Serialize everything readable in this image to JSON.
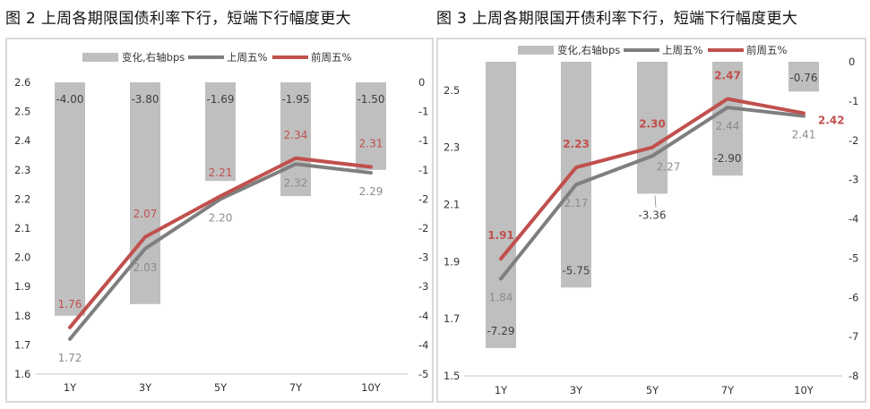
{
  "titles": [
    "图 2  上周各期限国债利率下行，短端下行幅度更大",
    "图 3  上周各期限国开债利率下行，短端下行幅度更大"
  ],
  "colors": {
    "bar": "#bfbfbf",
    "last_friday": "#7f7f7f",
    "prev_friday": "#c0504d",
    "bar_label": "#404040"
  },
  "chart_data": [
    {
      "type": "bar+line",
      "title": "图 2  上周各期限国债利率下行，短端下行幅度更大",
      "categories": [
        "1Y",
        "3Y",
        "5Y",
        "7Y",
        "10Y"
      ],
      "legend": [
        "变化,右轴bps",
        "上周五%",
        "前周五%"
      ],
      "legend_position": "top",
      "series": [
        {
          "name": "变化,右轴bps",
          "type": "bar",
          "axis": "right",
          "values": [
            -4.0,
            -3.8,
            -1.69,
            -1.95,
            -1.5
          ],
          "labels": [
            "-4.00",
            "-3.80",
            "-1.69",
            "-1.95",
            "-1.50"
          ]
        },
        {
          "name": "上周五%",
          "type": "line",
          "axis": "left",
          "values": [
            1.72,
            2.03,
            2.2,
            2.32,
            2.29
          ],
          "labels": [
            "1.72",
            "2.03",
            "2.20",
            "2.32",
            "2.29"
          ]
        },
        {
          "name": "前周五%",
          "type": "line",
          "axis": "left",
          "values": [
            1.76,
            2.07,
            2.21,
            2.34,
            2.31
          ],
          "labels": [
            "1.76",
            "2.07",
            "2.21",
            "2.34",
            "2.31"
          ]
        }
      ],
      "left_axis": {
        "range": [
          1.6,
          2.6
        ],
        "ticks": [
          1.6,
          1.7,
          1.8,
          1.9,
          2.0,
          2.1,
          2.2,
          2.3,
          2.4,
          2.5,
          2.6
        ],
        "tick_labels": [
          "1.6",
          "1.7",
          "1.8",
          "1.9",
          "2.0",
          "2.1",
          "2.2",
          "2.3",
          "2.4",
          "2.5",
          "2.6"
        ]
      },
      "right_axis": {
        "range": [
          -5,
          0
        ],
        "ticks": [
          -5,
          -4.5,
          -4,
          -3.5,
          -3,
          -2.5,
          -2,
          -1.5,
          -1,
          -0.5,
          0
        ],
        "tick_labels": [
          "-5",
          "-4",
          "-4",
          "-3",
          "-3",
          "-2",
          "-2",
          "-1",
          "-1",
          "-1",
          "0"
        ]
      },
      "grid": false
    },
    {
      "type": "bar+line",
      "title": "图 3  上周各期限国开债利率下行，短端下行幅度更大",
      "categories": [
        "1Y",
        "3Y",
        "5Y",
        "7Y",
        "10Y"
      ],
      "legend": [
        "变化,右轴bps",
        "上周五%",
        "前周五%"
      ],
      "legend_position": "top",
      "series": [
        {
          "name": "变化,右轴bps",
          "type": "bar",
          "axis": "right",
          "values": [
            -7.29,
            -5.75,
            -3.36,
            -2.9,
            -0.76
          ],
          "labels": [
            "-7.29",
            "-5.75",
            "-3.36",
            "-2.90",
            "-0.76"
          ]
        },
        {
          "name": "上周五%",
          "type": "line",
          "axis": "left",
          "values": [
            1.84,
            2.17,
            2.27,
            2.44,
            2.41
          ],
          "labels": [
            "1.84",
            "2.17",
            "2.27",
            "2.44",
            "2.41"
          ]
        },
        {
          "name": "前周五%",
          "type": "line",
          "axis": "left",
          "values": [
            1.91,
            2.23,
            2.3,
            2.47,
            2.42
          ],
          "labels": [
            "1.91",
            "2.23",
            "2.30",
            "2.47",
            "2.42"
          ]
        }
      ],
      "left_axis": {
        "range": [
          1.5,
          2.6
        ],
        "ticks": [
          1.5,
          1.7,
          1.9,
          2.1,
          2.3,
          2.5
        ],
        "tick_labels": [
          "1.5",
          "1.7",
          "1.9",
          "2.1",
          "2.3",
          "2.5"
        ]
      },
      "right_axis": {
        "range": [
          -8,
          0
        ],
        "ticks": [
          -8,
          -7,
          -6,
          -5,
          -4,
          -3,
          -2,
          -1,
          0
        ],
        "tick_labels": [
          "-8",
          "-7",
          "-6",
          "-5",
          "-4",
          "-3",
          "-2",
          "-1",
          "0"
        ]
      },
      "grid": false
    }
  ]
}
